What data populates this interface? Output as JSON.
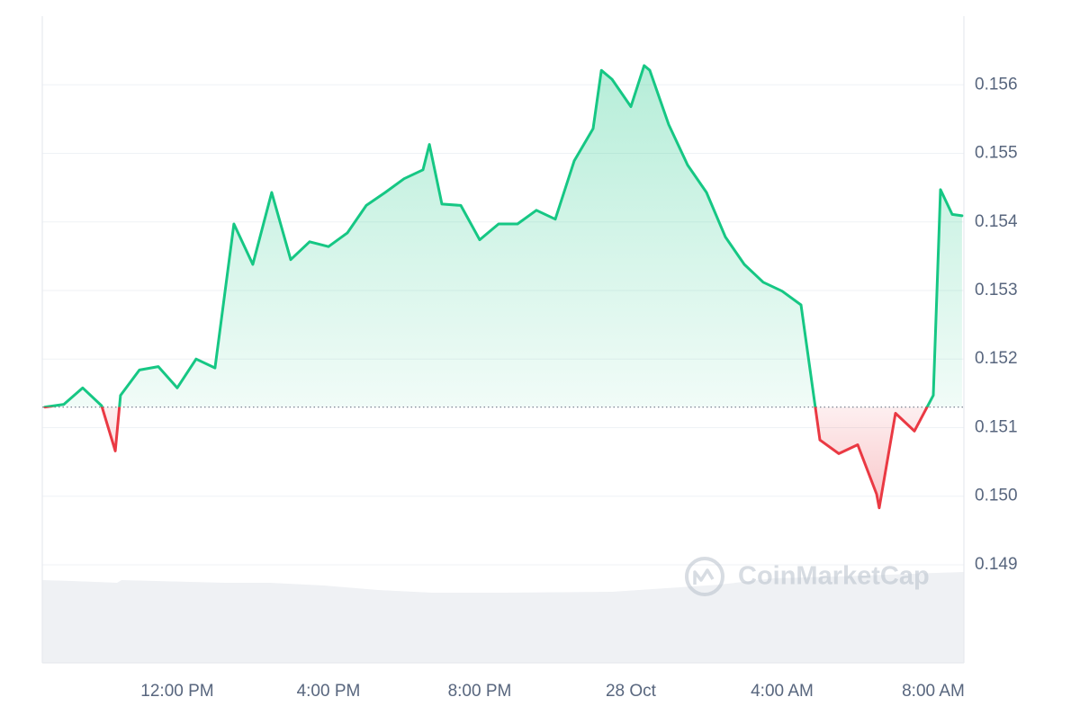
{
  "chart_data": {
    "type": "line",
    "x": [
      -15.5,
      -15,
      -14.5,
      -14,
      -13.64,
      -13.5,
      -13,
      -12.5,
      -12,
      -11.5,
      -11,
      -10.5,
      -10,
      -9.5,
      -9,
      -8.5,
      -8,
      -7.5,
      -7,
      -6.5,
      -6,
      -5.5,
      -5.33,
      -5,
      -4.5,
      -4,
      -3.5,
      -3,
      -2.5,
      -2,
      -1.5,
      -1,
      -0.78,
      -0.5,
      0,
      0.35,
      0.5,
      1,
      1.5,
      2,
      2.5,
      3,
      3.5,
      4,
      4.5,
      5,
      5.5,
      6,
      6.5,
      6.57,
      7,
      7.5,
      8,
      8.19,
      8.5,
      8.76
    ],
    "values": [
      0.1513,
      0.15134,
      0.15158,
      0.15132,
      0.15066,
      0.15147,
      0.15184,
      0.15189,
      0.15158,
      0.152,
      0.15187,
      0.15397,
      0.15338,
      0.15443,
      0.15345,
      0.15371,
      0.15364,
      0.15384,
      0.15424,
      0.15443,
      0.15463,
      0.15476,
      0.15513,
      0.15426,
      0.15424,
      0.15374,
      0.15397,
      0.15397,
      0.15417,
      0.15404,
      0.15489,
      0.15536,
      0.15621,
      0.15608,
      0.15568,
      0.15628,
      0.15621,
      0.15542,
      0.15483,
      0.15443,
      0.15378,
      0.15338,
      0.15312,
      0.15299,
      0.15279,
      0.15082,
      0.15062,
      0.15075,
      0.15003,
      0.14983,
      0.15121,
      0.15095,
      0.15147,
      0.15447,
      0.15411,
      0.15409
    ],
    "baseline": 0.1513,
    "color_up": "#16c784",
    "color_down": "#ea3943",
    "xlim": [
      -15.57,
      8.81
    ],
    "xticks": [
      {
        "value": -12,
        "label": "12:00 PM"
      },
      {
        "value": -8,
        "label": "4:00 PM"
      },
      {
        "value": -4,
        "label": "8:00 PM"
      },
      {
        "value": 0,
        "label": "28 Oct"
      },
      {
        "value": 4,
        "label": "4:00 AM"
      },
      {
        "value": 8,
        "label": "8:00 AM"
      }
    ],
    "ylim": [
      0.14757,
      0.157
    ],
    "yticks": [
      {
        "value": 0.149,
        "label": "0.149"
      },
      {
        "value": 0.15,
        "label": "0.150"
      },
      {
        "value": 0.151,
        "label": "0.151"
      },
      {
        "value": 0.152,
        "label": "0.152"
      },
      {
        "value": 0.153,
        "label": "0.153"
      },
      {
        "value": 0.154,
        "label": "0.154"
      },
      {
        "value": 0.155,
        "label": "0.155"
      },
      {
        "value": 0.156,
        "label": "0.156"
      }
    ],
    "grid": true,
    "watermark": "CoinMarketCap"
  }
}
